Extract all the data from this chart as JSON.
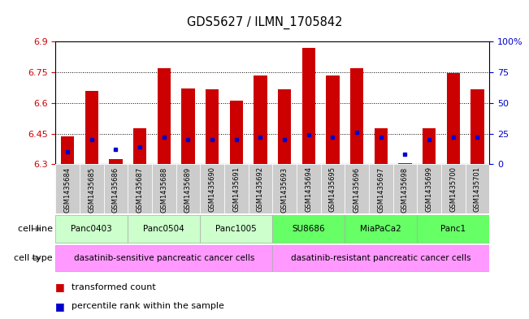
{
  "title": "GDS5627 / ILMN_1705842",
  "samples": [
    "GSM1435684",
    "GSM1435685",
    "GSM1435686",
    "GSM1435687",
    "GSM1435688",
    "GSM1435689",
    "GSM1435690",
    "GSM1435691",
    "GSM1435692",
    "GSM1435693",
    "GSM1435694",
    "GSM1435695",
    "GSM1435696",
    "GSM1435697",
    "GSM1435698",
    "GSM1435699",
    "GSM1435700",
    "GSM1435701"
  ],
  "transformed_count": [
    6.435,
    6.66,
    6.325,
    6.475,
    6.77,
    6.67,
    6.665,
    6.61,
    6.735,
    6.665,
    6.87,
    6.735,
    6.77,
    6.475,
    6.305,
    6.475,
    6.745,
    6.665
  ],
  "percentile_rank": [
    10,
    20,
    12,
    14,
    22,
    20,
    20,
    20,
    22,
    20,
    24,
    22,
    26,
    22,
    8,
    20,
    22,
    22
  ],
  "cell_lines": [
    {
      "label": "Panc0403",
      "start": 0,
      "end": 2,
      "color": "#ccffcc"
    },
    {
      "label": "Panc0504",
      "start": 3,
      "end": 5,
      "color": "#ccffcc"
    },
    {
      "label": "Panc1005",
      "start": 6,
      "end": 8,
      "color": "#ccffcc"
    },
    {
      "label": "SU8686",
      "start": 9,
      "end": 11,
      "color": "#66ff66"
    },
    {
      "label": "MiaPaCa2",
      "start": 12,
      "end": 14,
      "color": "#66ff66"
    },
    {
      "label": "Panc1",
      "start": 15,
      "end": 17,
      "color": "#66ff66"
    }
  ],
  "cell_types": [
    {
      "label": "dasatinib-sensitive pancreatic cancer cells",
      "start": 0,
      "end": 8
    },
    {
      "label": "dasatinib-resistant pancreatic cancer cells",
      "start": 9,
      "end": 17
    }
  ],
  "cell_type_color": "#ff99ff",
  "ylim_left": [
    6.3,
    6.9
  ],
  "ylim_right": [
    0,
    100
  ],
  "yticks_left": [
    6.3,
    6.45,
    6.6,
    6.75,
    6.9
  ],
  "ytick_labels_left": [
    "6.3",
    "6.45",
    "6.6",
    "6.75",
    "6.9"
  ],
  "yticks_right": [
    0,
    25,
    50,
    75,
    100
  ],
  "ytick_labels_right": [
    "0",
    "25",
    "50",
    "75",
    "100%"
  ],
  "bar_color": "#cc0000",
  "dot_color": "#0000cc",
  "bar_bottom": 6.3,
  "bar_width": 0.55,
  "sample_bg_color": "#cccccc",
  "left_label_color": "#888888"
}
